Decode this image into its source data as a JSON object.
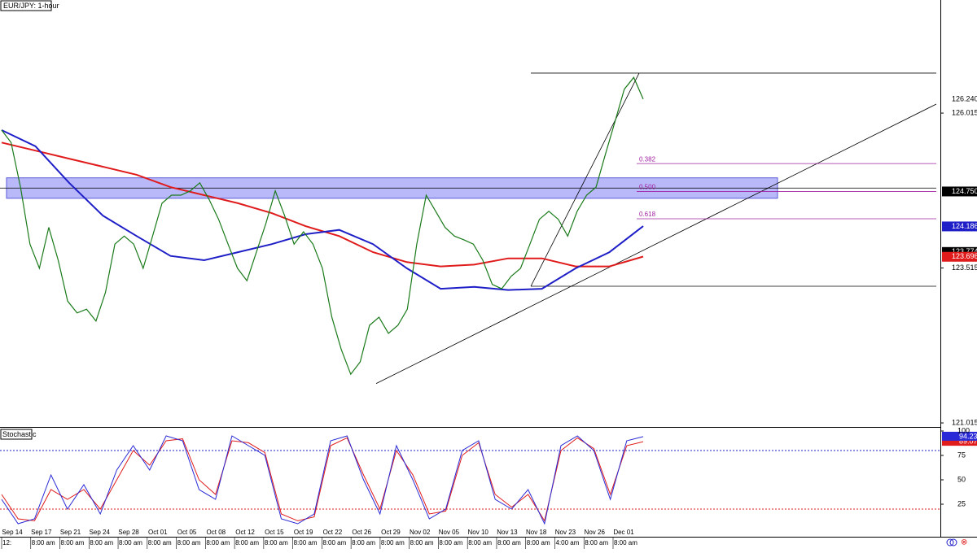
{
  "chart_data": {
    "type": "line",
    "title": "EUR/JPY: 1-hour",
    "categories": [
      "Sep 14",
      "Sep 17",
      "Sep 21",
      "Sep 24",
      "Sep 28",
      "Oct 01",
      "Oct 05",
      "Oct 08",
      "Oct 12",
      "Oct 15",
      "Oct 19",
      "Oct 22",
      "Oct 26",
      "Oct 29",
      "Nov 02",
      "Nov 05",
      "Nov 10",
      "Nov 13",
      "Nov 18",
      "Nov 23",
      "Nov 26",
      "Dec 01"
    ],
    "times": [
      "12:",
      "8:00 am",
      "8:00 am",
      "8:00 am",
      "8:00 am",
      "8:00 am",
      "8:00 am",
      "8:00 am",
      "8:00 am",
      "8:00 am",
      "8:00 am",
      "8:00 am",
      "8:00 am",
      "8:00 am",
      "8:00 am",
      "8:00 am",
      "8:00 am",
      "8:00 am",
      "8:00 am",
      "4:00 am",
      "8:00 am",
      "8:00 am"
    ],
    "ylim": [
      120.95,
      127.84
    ],
    "yticks": [
      126.015,
      123.515,
      121.015
    ],
    "price": {
      "color": "#1a7a1a",
      "values": [
        125.74,
        125.54,
        124.82,
        123.9,
        123.51,
        124.17,
        123.64,
        122.98,
        122.79,
        122.85,
        122.66,
        123.12,
        123.9,
        124.03,
        123.9,
        123.51,
        124.03,
        124.56,
        124.69,
        124.69,
        124.76,
        124.89,
        124.62,
        124.3,
        123.9,
        123.51,
        123.31,
        123.77,
        124.23,
        124.76,
        124.36,
        123.9,
        124.1,
        123.9,
        123.51,
        122.72,
        122.2,
        121.8,
        122.0,
        122.59,
        122.72,
        122.46,
        122.59,
        122.85,
        123.9,
        124.69,
        124.43,
        124.17,
        124.03,
        123.97,
        123.9,
        123.64,
        123.25,
        123.18,
        123.38,
        123.51,
        123.9,
        124.3,
        124.43,
        124.3,
        124.03,
        124.43,
        124.69,
        124.82,
        125.35,
        125.87,
        126.4,
        126.59,
        126.24
      ]
    },
    "ma_fast": {
      "color": "#1f1fc8",
      "values": [
        125.74,
        125.48,
        124.89,
        124.36,
        124.03,
        123.71,
        123.64,
        123.77,
        123.9,
        124.06,
        124.13,
        123.9,
        123.51,
        123.18,
        123.21,
        123.16,
        123.18,
        123.51,
        123.77,
        124.19
      ]
    },
    "ma_slow": {
      "color": "#e01b1b",
      "values": [
        125.54,
        125.41,
        125.28,
        125.15,
        125.02,
        124.82,
        124.69,
        124.56,
        124.4,
        124.19,
        124.03,
        123.77,
        123.61,
        123.54,
        123.57,
        123.67,
        123.67,
        123.54,
        123.54,
        123.7
      ]
    },
    "price_tags": [
      {
        "value": 126.24,
        "label": "126.240",
        "color": "#ffffff"
      },
      {
        "value": 124.75,
        "label": "124.750",
        "color": "#000000"
      },
      {
        "value": 124.186,
        "label": "124.186",
        "color": "#1f1fc8"
      },
      {
        "value": 123.774,
        "label": "123.774",
        "color": "#000000"
      },
      {
        "value": 123.696,
        "label": "123.696",
        "color": "#e01b1b"
      }
    ],
    "levels": [
      126.66,
      123.22
    ],
    "zone": [
      124.97,
      124.64
    ],
    "trendline": [
      121.65,
      126.16
    ],
    "fib": [
      {
        "label": "0.382",
        "value": 125.2
      },
      {
        "label": "0.500",
        "value": 124.75
      },
      {
        "label": "0.618",
        "value": 124.31
      }
    ],
    "stochastic": {
      "title": "Stochastic",
      "ylim": [
        0,
        100
      ],
      "yticks": [
        100,
        75,
        50,
        25
      ],
      "overbought": 80,
      "oversold": 20,
      "k": {
        "color": "#2a2ad6",
        "values": [
          30,
          5,
          10,
          55,
          20,
          45,
          15,
          60,
          85,
          60,
          95,
          90,
          40,
          30,
          95,
          85,
          75,
          10,
          5,
          15,
          90,
          95,
          50,
          15,
          85,
          50,
          10,
          20,
          80,
          90,
          30,
          20,
          40,
          5,
          85,
          95,
          80,
          30,
          90,
          94.23
        ]
      },
      "d": {
        "color": "#e01b1b",
        "values": [
          35,
          10,
          8,
          40,
          30,
          40,
          20,
          50,
          80,
          65,
          90,
          92,
          50,
          35,
          90,
          88,
          78,
          15,
          8,
          12,
          85,
          93,
          55,
          20,
          80,
          55,
          15,
          18,
          75,
          88,
          35,
          22,
          35,
          8,
          80,
          93,
          82,
          35,
          85,
          89.07
        ]
      }
    }
  }
}
